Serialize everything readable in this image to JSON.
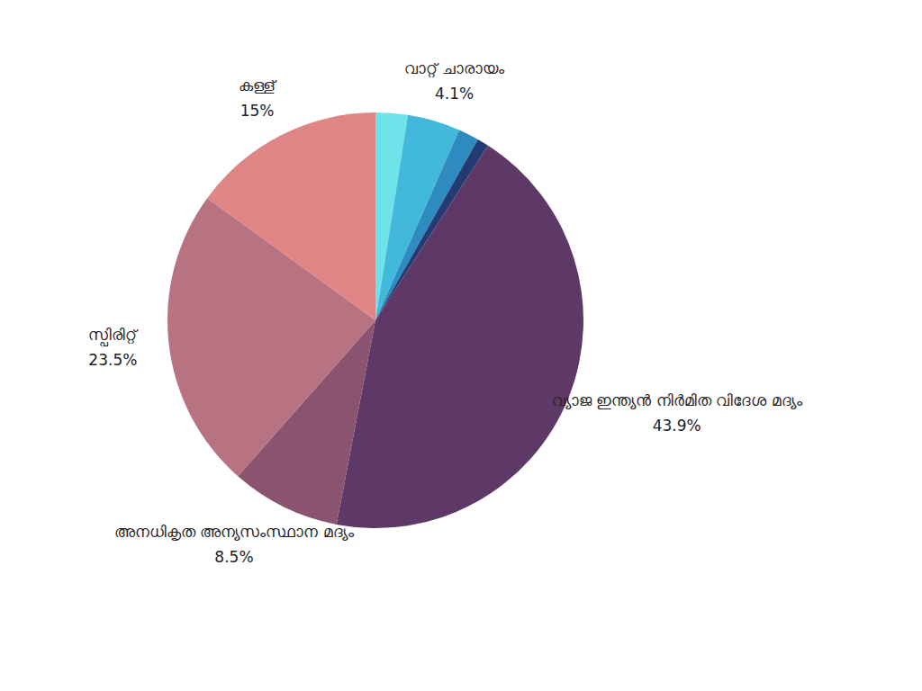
{
  "chart_data": {
    "type": "pie",
    "categories": [
      null,
      "വാറ്റ് ചാരായം",
      null,
      null,
      "വ്യാജ ഇന്ത്യൻ നിർമിത വിദേശ മദ്യം",
      "അനധികൃത അന്യസംസ്ഥാന മദ്യം",
      "സ്പിരിറ്റ്",
      "കള്ള്"
    ],
    "values": [
      2.5,
      4.1,
      1.6,
      0.9,
      43.9,
      8.5,
      23.5,
      15
    ],
    "value_labels": [
      null,
      "4.1%",
      null,
      null,
      "43.9%",
      "8.5%",
      "23.5%",
      "15%"
    ],
    "colors": [
      "#6ee3ea",
      "#42b8da",
      "#2e8bc0",
      "#233a73",
      "#5e3866",
      "#8a5370",
      "#b87382",
      "#e08585"
    ],
    "data_labels": true
  }
}
